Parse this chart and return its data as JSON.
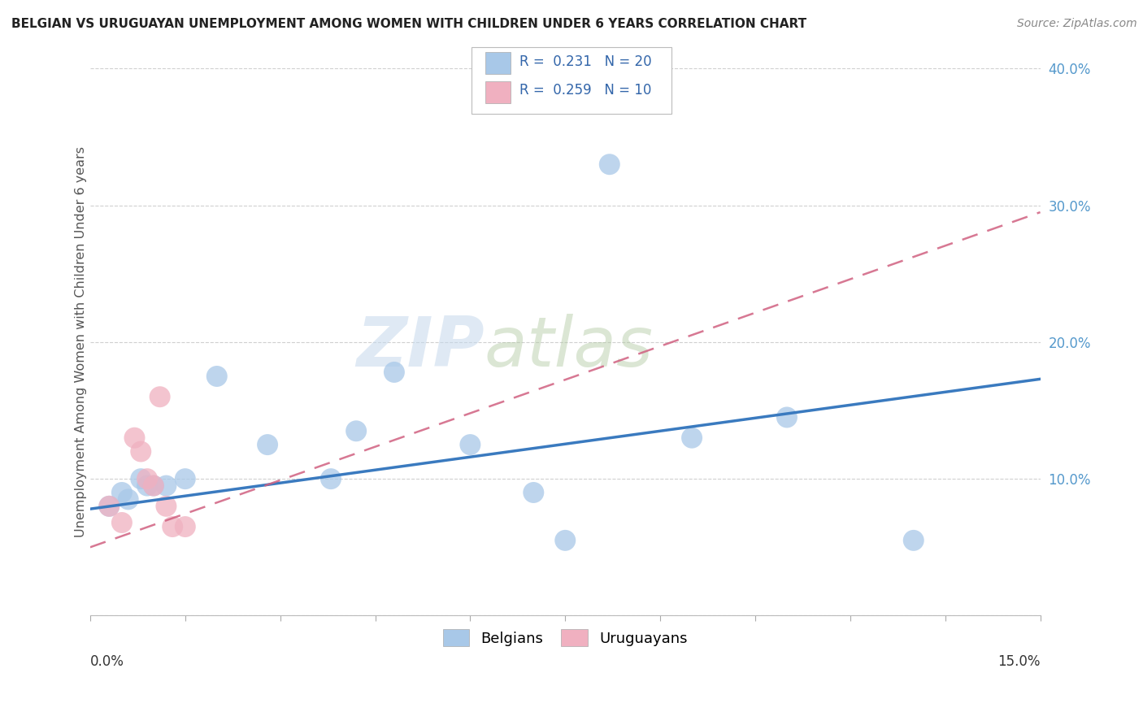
{
  "title": "BELGIAN VS URUGUAYAN UNEMPLOYMENT AMONG WOMEN WITH CHILDREN UNDER 6 YEARS CORRELATION CHART",
  "source": "Source: ZipAtlas.com",
  "ylabel": "Unemployment Among Women with Children Under 6 years",
  "xlim": [
    0.0,
    0.15
  ],
  "ylim": [
    0.0,
    0.4
  ],
  "ytick_vals": [
    0.0,
    0.1,
    0.2,
    0.3,
    0.4
  ],
  "ytick_labels": [
    "",
    "10.0%",
    "20.0%",
    "30.0%",
    "40.0%"
  ],
  "belgian_color": "#a8c8e8",
  "uruguayan_color": "#f0b0c0",
  "belgian_line_color": "#3a7abf",
  "uruguayan_line_color": "#d06080",
  "legend_r_belgian": "R =  0.231",
  "legend_n_belgian": "N = 20",
  "legend_r_uruguayan": "R =  0.259",
  "legend_n_uruguayan": "N = 10",
  "watermark_zip": "ZIP",
  "watermark_atlas": "atlas",
  "background_color": "#ffffff",
  "grid_color": "#d0d0d0",
  "belgians_x": [
    0.003,
    0.005,
    0.006,
    0.008,
    0.009,
    0.01,
    0.012,
    0.015,
    0.02,
    0.028,
    0.038,
    0.042,
    0.048,
    0.06,
    0.07,
    0.075,
    0.082,
    0.095,
    0.11,
    0.13
  ],
  "belgians_y": [
    0.08,
    0.09,
    0.085,
    0.1,
    0.095,
    0.095,
    0.095,
    0.1,
    0.175,
    0.125,
    0.1,
    0.135,
    0.178,
    0.125,
    0.09,
    0.055,
    0.33,
    0.13,
    0.145,
    0.055
  ],
  "uruguayans_x": [
    0.003,
    0.005,
    0.007,
    0.008,
    0.009,
    0.01,
    0.011,
    0.012,
    0.013,
    0.015
  ],
  "uruguayans_y": [
    0.08,
    0.068,
    0.13,
    0.12,
    0.1,
    0.095,
    0.16,
    0.08,
    0.065,
    0.065
  ],
  "belgian_regline": [
    0.078,
    0.173
  ],
  "uruguayan_regline": [
    0.05,
    0.295
  ]
}
